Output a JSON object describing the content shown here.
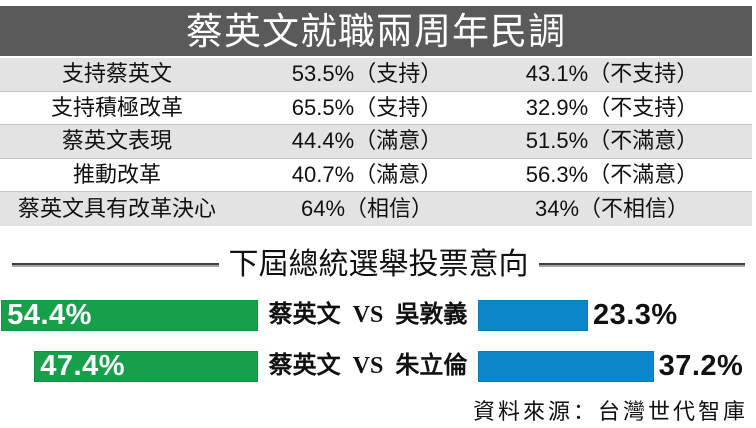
{
  "colors": {
    "title_bar": "#5a5a5a",
    "row_shade": "#e3e3e3",
    "tsai_bar": "#17a04a",
    "opponent_bar": "#0b86c9"
  },
  "chart_data": [
    {
      "type": "table",
      "title": "蔡英文就職兩周年民調",
      "unit": "%",
      "rows": [
        {
          "label": "支持蔡英文",
          "values": [
            53.5,
            43.1
          ],
          "notes": [
            "（支持）",
            "（不支持）"
          ]
        },
        {
          "label": "支持積極改革",
          "values": [
            65.5,
            32.9
          ],
          "notes": [
            "（支持）",
            "（不支持）"
          ]
        },
        {
          "label": "蔡英文表現",
          "values": [
            44.4,
            51.5
          ],
          "notes": [
            "（滿意）",
            "（不滿意）"
          ]
        },
        {
          "label": "推動改革",
          "values": [
            40.7,
            56.3
          ],
          "notes": [
            "（滿意）",
            "（不滿意）"
          ]
        },
        {
          "label": "蔡英文具有改革決心",
          "values": [
            64,
            34
          ],
          "notes": [
            "（相信）",
            "（不相信）"
          ]
        }
      ]
    },
    {
      "type": "bar",
      "title": "下屆總統選舉投票意向",
      "unit": "%",
      "categories": [
        "蔡英文 VS 吳敦義",
        "蔡英文 VS 朱立倫"
      ],
      "series": [
        {
          "values": [
            54.4,
            47.4
          ]
        },
        {
          "values": [
            23.3,
            37.2
          ]
        }
      ]
    }
  ],
  "source": "資料來源：台灣世代智庫"
}
